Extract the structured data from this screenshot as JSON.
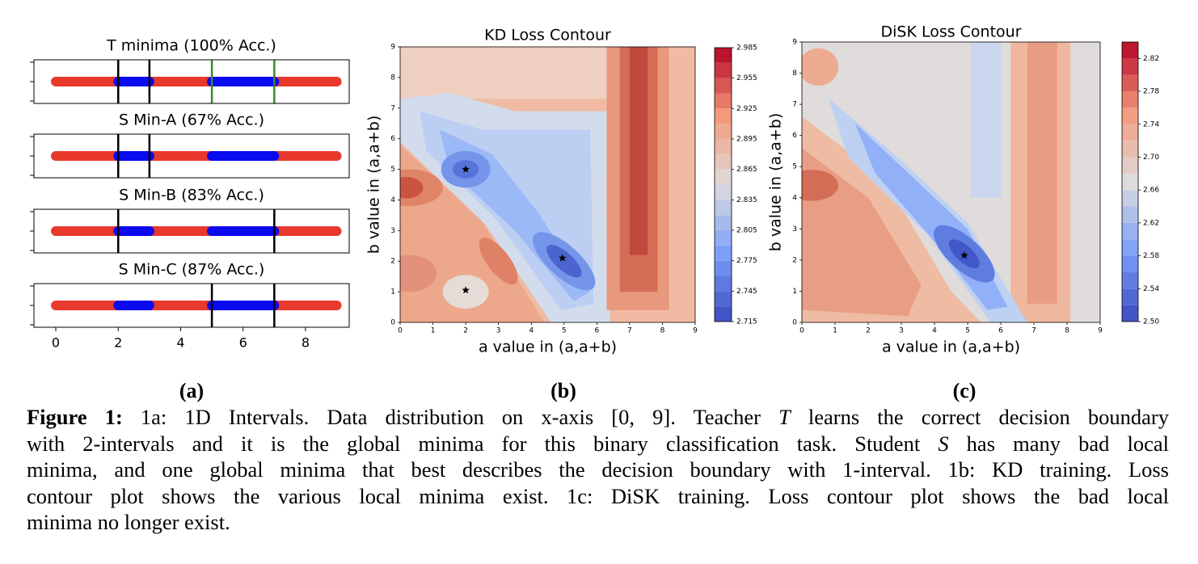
{
  "chart_data": [
    {
      "type": "interval",
      "title": "T minima (100% Acc.)",
      "xlim": [
        -0.7,
        9.4
      ],
      "data_range": [
        0,
        9
      ],
      "positive_intervals": [
        [
          2,
          3
        ],
        [
          5,
          7
        ]
      ],
      "boundaries": [
        2,
        3,
        5,
        7
      ],
      "boundary_colors": [
        "#000000",
        "#000000",
        "#3a8a2e",
        "#3a8a2e"
      ],
      "negative_color": "#e8392c",
      "positive_color": "#0a0af0"
    },
    {
      "type": "interval",
      "title": "S Min-A (67% Acc.)",
      "xlim": [
        -0.7,
        9.4
      ],
      "data_range": [
        0,
        9
      ],
      "positive_intervals": [
        [
          2,
          3
        ],
        [
          5,
          7
        ]
      ],
      "boundaries": [
        2,
        3
      ],
      "boundary_colors": [
        "#000000",
        "#000000"
      ],
      "negative_color": "#e8392c",
      "positive_color": "#0a0af0"
    },
    {
      "type": "interval",
      "title": "S Min-B (83% Acc.)",
      "xlim": [
        -0.7,
        9.4
      ],
      "data_range": [
        0,
        9
      ],
      "positive_intervals": [
        [
          2,
          3
        ],
        [
          5,
          7
        ]
      ],
      "boundaries": [
        2,
        7
      ],
      "boundary_colors": [
        "#000000",
        "#000000"
      ],
      "negative_color": "#e8392c",
      "positive_color": "#0a0af0"
    },
    {
      "type": "interval",
      "title": "S Min-C (87% Acc.)",
      "xlim": [
        -0.7,
        9.4
      ],
      "data_range": [
        0,
        9
      ],
      "positive_intervals": [
        [
          2,
          3
        ],
        [
          5,
          7
        ]
      ],
      "boundaries": [
        5,
        7
      ],
      "boundary_colors": [
        "#000000",
        "#000000"
      ],
      "negative_color": "#e8392c",
      "positive_color": "#0a0af0",
      "xticks": [
        0,
        2,
        4,
        6,
        8
      ]
    },
    {
      "type": "contour",
      "title": "KD Loss Contour",
      "xlabel": "a value in (a,a+b)",
      "ylabel": "b value in (a,a+b)",
      "xlim": [
        0,
        9
      ],
      "ylim": [
        0,
        9
      ],
      "xticks": [
        0,
        1,
        2,
        3,
        4,
        5,
        6,
        7,
        8,
        9
      ],
      "yticks": [
        0,
        1,
        2,
        3,
        4,
        5,
        6,
        7,
        8,
        9
      ],
      "colormap": "coolwarm",
      "clim": [
        2.715,
        2.985
      ],
      "cticks": [
        2.715,
        2.745,
        2.775,
        2.805,
        2.835,
        2.865,
        2.895,
        2.925,
        2.955,
        2.985
      ],
      "minima": {
        "x": [
          2,
          4.95,
          2
        ],
        "y": [
          5,
          2.1,
          1.05
        ]
      }
    },
    {
      "type": "contour",
      "title": "DiSK Loss Contour",
      "xlabel": "a value in (a,a+b)",
      "ylabel": "b value in (a,a+b)",
      "xlim": [
        0,
        9
      ],
      "ylim": [
        0,
        9
      ],
      "xticks": [
        0,
        1,
        2,
        3,
        4,
        5,
        6,
        7,
        8,
        9
      ],
      "yticks": [
        0,
        1,
        2,
        3,
        4,
        5,
        6,
        7,
        8,
        9
      ],
      "colormap": "coolwarm",
      "clim": [
        2.5,
        2.84
      ],
      "cticks": [
        {
          "value": 2.5,
          "label": "2.50"
        },
        2.54,
        2.58,
        2.62,
        2.66,
        {
          "value": 2.7,
          "label": "2.70"
        },
        2.74,
        2.78,
        2.82
      ],
      "minima": {
        "x": [
          4.9
        ],
        "y": [
          2.15
        ]
      }
    }
  ],
  "panel_labels": [
    "(a)",
    "(b)",
    "(c)"
  ],
  "caption": {
    "lines": [
      [
        {
          "text": "Figure 1:",
          "bold": true
        },
        {
          "text": " 1a: 1D Intervals. Data distribution on x-axis [0, 9]. Teacher "
        },
        {
          "text": "T",
          "italic": true
        },
        {
          "text": " learns the correct decision boundary"
        }
      ],
      [
        {
          "text": "with 2-intervals and it is the global minima for this binary classification task. Student "
        },
        {
          "text": "S",
          "italic": true
        },
        {
          "text": " has many bad local"
        }
      ],
      [
        {
          "text": "minima, and one global minima that best describes the decision boundary with 1-interval. 1b: KD training. Loss"
        }
      ],
      [
        {
          "text": "contour plot shows the various local minima exist. 1c: DiSK training. Loss contour plot shows the bad local"
        }
      ],
      [
        {
          "text": "minima no longer exist."
        }
      ]
    ]
  }
}
